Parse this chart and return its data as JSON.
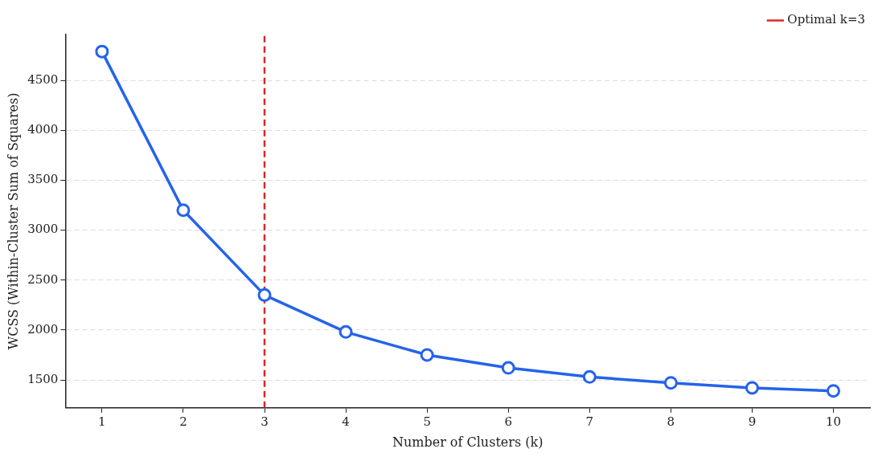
{
  "chart_data": {
    "type": "line",
    "xlabel": "Number of Clusters (k)",
    "ylabel": "WCSS (Within-Cluster Sum of Squares)",
    "x": [
      1,
      2,
      3,
      4,
      5,
      6,
      7,
      8,
      9,
      10
    ],
    "series": [
      {
        "color": "#2563eb",
        "values": [
          4790,
          3200,
          2350,
          1980,
          1750,
          1620,
          1530,
          1470,
          1420,
          1390
        ]
      }
    ],
    "xlim": [
      0.55,
      10.45
    ],
    "xticks": [
      1,
      2,
      3,
      4,
      5,
      6,
      7,
      8,
      9,
      10
    ],
    "ylim": [
      1220,
      4960
    ],
    "yticks": [
      1500,
      2000,
      2500,
      3000,
      3500,
      4000,
      4500
    ],
    "ref_lines": [
      {
        "axis": "x",
        "value": 3,
        "label": "Optimal k=3",
        "color": "#dc2626",
        "line_style": "dashed"
      }
    ],
    "grid": "y",
    "legend": "top right",
    "marker": "circle",
    "line_style": "solid"
  }
}
